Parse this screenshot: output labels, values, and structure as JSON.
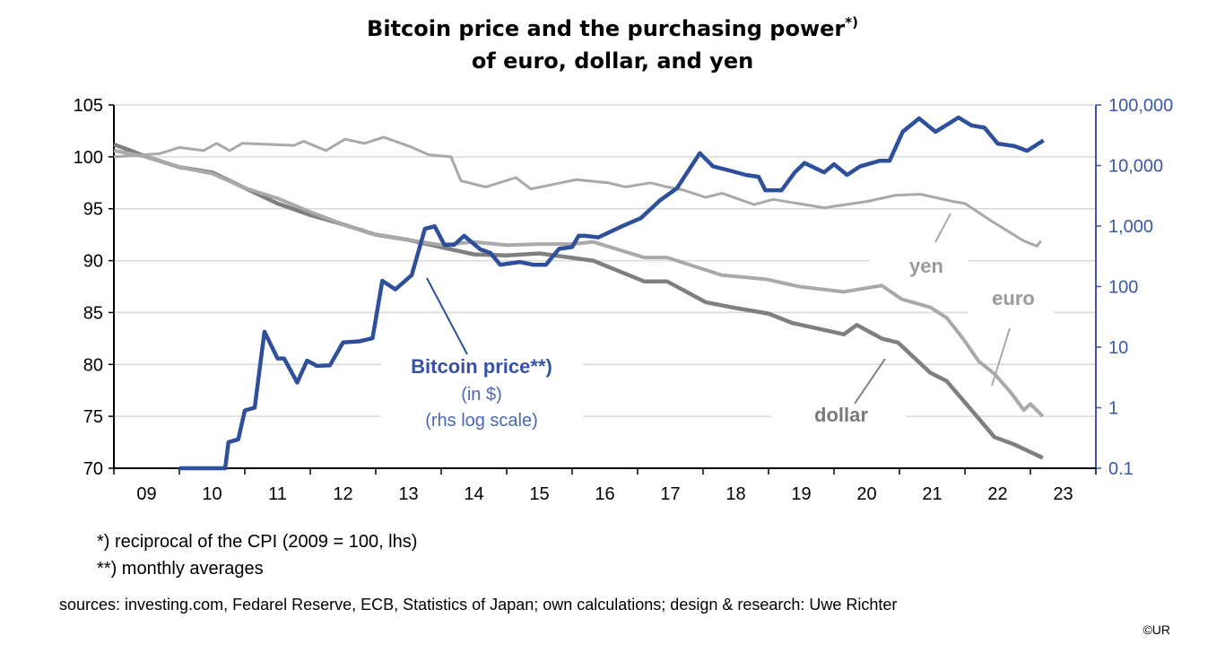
{
  "title": {
    "line1": "Bitcoin price and the purchasing power",
    "line1_sup": "*)",
    "line2": "of euro, dollar, and yen"
  },
  "colors": {
    "bitcoin": "#2e4f9a",
    "dollar": "#7f7f7f",
    "euro": "#a9a9a9",
    "yen": "#a9a9a9",
    "grid": "#d9d9d9",
    "right_axis": "#3b57a6"
  },
  "annotations": {
    "bitcoin": "Bitcoin price**)",
    "bitcoin_unit": "(in $)",
    "bitcoin_scale": "(rhs log scale)",
    "yen": "yen",
    "euro": "euro",
    "dollar": "dollar"
  },
  "footnotes": {
    "note1": "*) reciprocal of the CPI (2009 = 100, lhs)",
    "note2": "**) monthly averages",
    "sources": "sources: investing.com, Fedarel Reserve, ECB,  Statistics of Japan; own calculations; design & research: Uwe Richter",
    "copyright": "©UR"
  },
  "chart_data": {
    "type": "line",
    "title": "Bitcoin price and the purchasing power*) of euro, dollar, and yen",
    "x_tick_labels": [
      "09",
      "10",
      "11",
      "12",
      "13",
      "14",
      "15",
      "16",
      "17",
      "18",
      "19",
      "20",
      "21",
      "22",
      "23"
    ],
    "xlim": [
      2009,
      2024
    ],
    "left_axis": {
      "ylim": [
        70,
        105
      ],
      "ticks": [
        "70",
        "75",
        "80",
        "85",
        "90",
        "95",
        "100",
        "105"
      ]
    },
    "right_axis": {
      "scale": "log",
      "ylim": [
        0.1,
        100000
      ],
      "ticks": [
        "0.1",
        "1",
        "10",
        "100",
        "1,000",
        "10,000",
        "100,000"
      ]
    },
    "grid": true,
    "series": [
      {
        "name": "dollar",
        "axis": "left",
        "points": [
          [
            2009.0,
            101.2
          ],
          [
            2009.3,
            100.5
          ],
          [
            2009.5,
            100
          ],
          [
            2010.0,
            99
          ],
          [
            2010.5,
            98.5
          ],
          [
            2011.0,
            97
          ],
          [
            2011.5,
            95.5
          ],
          [
            2012.0,
            94.4
          ],
          [
            2012.5,
            93.5
          ],
          [
            2013.0,
            92.5
          ],
          [
            2013.5,
            92
          ],
          [
            2014.0,
            91.3
          ],
          [
            2014.5,
            90.6
          ],
          [
            2015.0,
            90.5
          ],
          [
            2015.5,
            90.7
          ],
          [
            2016.32,
            90.0
          ],
          [
            2017.1,
            88.0
          ],
          [
            2017.45,
            88.0
          ],
          [
            2018.04,
            86.0
          ],
          [
            2018.44,
            85.5
          ],
          [
            2019.0,
            84.9
          ],
          [
            2019.36,
            84.0
          ],
          [
            2020.15,
            82.9
          ],
          [
            2020.35,
            83.8
          ],
          [
            2020.73,
            82.5
          ],
          [
            2020.98,
            82.1
          ],
          [
            2021.47,
            79.2
          ],
          [
            2021.72,
            78.4
          ],
          [
            2022.21,
            74.8
          ],
          [
            2022.45,
            73.0
          ],
          [
            2022.75,
            72.3
          ],
          [
            2023.19,
            71.0
          ]
        ]
      },
      {
        "name": "euro",
        "axis": "left",
        "points": [
          [
            2009.0,
            100.6
          ],
          [
            2009.5,
            100
          ],
          [
            2010.0,
            99
          ],
          [
            2010.5,
            98.4
          ],
          [
            2011.0,
            97
          ],
          [
            2011.5,
            96
          ],
          [
            2012.0,
            94.7
          ],
          [
            2012.5,
            93.5
          ],
          [
            2013.0,
            92.5
          ],
          [
            2013.5,
            92
          ],
          [
            2014.0,
            91.5
          ],
          [
            2014.5,
            91.8
          ],
          [
            2015.0,
            91.5
          ],
          [
            2015.5,
            91.6
          ],
          [
            2016.0,
            91.6
          ],
          [
            2016.32,
            91.8
          ],
          [
            2017.1,
            90.3
          ],
          [
            2017.45,
            90.3
          ],
          [
            2018.29,
            88.6
          ],
          [
            2018.97,
            88.2
          ],
          [
            2019.47,
            87.5
          ],
          [
            2020.15,
            87.0
          ],
          [
            2020.73,
            87.6
          ],
          [
            2021.03,
            86.3
          ],
          [
            2021.47,
            85.5
          ],
          [
            2021.72,
            84.5
          ],
          [
            2021.97,
            82.5
          ],
          [
            2022.21,
            80.3
          ],
          [
            2022.45,
            79.1
          ],
          [
            2022.7,
            77.3
          ],
          [
            2022.9,
            75.6
          ],
          [
            2023.0,
            76.2
          ],
          [
            2023.19,
            75.0
          ]
        ]
      },
      {
        "name": "yen",
        "axis": "left",
        "points": [
          [
            2009.0,
            100.0
          ],
          [
            2009.69,
            100.3
          ],
          [
            2010.0,
            100.9
          ],
          [
            2010.37,
            100.6
          ],
          [
            2010.57,
            101.3
          ],
          [
            2010.77,
            100.6
          ],
          [
            2010.96,
            101.3
          ],
          [
            2011.75,
            101.1
          ],
          [
            2011.9,
            101.5
          ],
          [
            2012.24,
            100.6
          ],
          [
            2012.53,
            101.7
          ],
          [
            2012.83,
            101.3
          ],
          [
            2013.12,
            101.9
          ],
          [
            2013.52,
            101.0
          ],
          [
            2013.81,
            100.2
          ],
          [
            2014.15,
            100.0
          ],
          [
            2014.3,
            97.7
          ],
          [
            2014.68,
            97.1
          ],
          [
            2015.14,
            98.0
          ],
          [
            2015.37,
            96.9
          ],
          [
            2016.06,
            97.8
          ],
          [
            2016.55,
            97.5
          ],
          [
            2016.82,
            97.1
          ],
          [
            2017.2,
            97.5
          ],
          [
            2017.45,
            97.1
          ],
          [
            2017.7,
            96.8
          ],
          [
            2018.04,
            96.1
          ],
          [
            2018.29,
            96.5
          ],
          [
            2018.78,
            95.4
          ],
          [
            2019.07,
            95.9
          ],
          [
            2019.85,
            95.1
          ],
          [
            2020.5,
            95.7
          ],
          [
            2020.94,
            96.3
          ],
          [
            2021.32,
            96.4
          ],
          [
            2021.82,
            95.7
          ],
          [
            2022.0,
            95.5
          ],
          [
            2022.41,
            93.8
          ],
          [
            2022.9,
            91.9
          ],
          [
            2023.1,
            91.4
          ],
          [
            2023.16,
            91.9
          ]
        ]
      },
      {
        "name": "Bitcoin price**)",
        "axis": "right",
        "points": [
          [
            2010.0,
            0.1
          ],
          [
            2010.7,
            0.1
          ],
          [
            2010.75,
            0.27
          ],
          [
            2010.9,
            0.3
          ],
          [
            2011.0,
            0.9
          ],
          [
            2011.15,
            1.0
          ],
          [
            2011.3,
            18
          ],
          [
            2011.5,
            6.5
          ],
          [
            2011.6,
            6.5
          ],
          [
            2011.8,
            2.6
          ],
          [
            2011.95,
            6
          ],
          [
            2012.1,
            4.9
          ],
          [
            2012.3,
            5
          ],
          [
            2012.5,
            12
          ],
          [
            2012.75,
            12.5
          ],
          [
            2012.95,
            14
          ],
          [
            2013.1,
            125
          ],
          [
            2013.3,
            90
          ],
          [
            2013.55,
            155
          ],
          [
            2013.75,
            900
          ],
          [
            2013.9,
            990
          ],
          [
            2014.05,
            490
          ],
          [
            2014.2,
            490
          ],
          [
            2014.35,
            690
          ],
          [
            2014.6,
            410
          ],
          [
            2014.75,
            360
          ],
          [
            2014.9,
            230
          ],
          [
            2015.2,
            255
          ],
          [
            2015.4,
            230
          ],
          [
            2015.6,
            230
          ],
          [
            2015.8,
            420
          ],
          [
            2016.0,
            450
          ],
          [
            2016.1,
            690
          ],
          [
            2016.2,
            690
          ],
          [
            2016.4,
            650
          ],
          [
            2016.75,
            980
          ],
          [
            2017.05,
            1350
          ],
          [
            2017.35,
            2700
          ],
          [
            2017.6,
            4200
          ],
          [
            2017.95,
            16000
          ],
          [
            2018.15,
            9700
          ],
          [
            2018.4,
            8300
          ],
          [
            2018.65,
            7000
          ],
          [
            2018.85,
            6500
          ],
          [
            2018.95,
            3900
          ],
          [
            2019.2,
            3900
          ],
          [
            2019.4,
            7700
          ],
          [
            2019.55,
            11000
          ],
          [
            2019.85,
            7700
          ],
          [
            2020.0,
            10500
          ],
          [
            2020.2,
            7000
          ],
          [
            2020.4,
            9700
          ],
          [
            2020.7,
            12000
          ],
          [
            2020.85,
            12000
          ],
          [
            2021.05,
            36000
          ],
          [
            2021.3,
            60000
          ],
          [
            2021.55,
            36000
          ],
          [
            2021.75,
            49000
          ],
          [
            2021.9,
            62000
          ],
          [
            2022.1,
            46000
          ],
          [
            2022.3,
            42000
          ],
          [
            2022.5,
            23000
          ],
          [
            2022.75,
            21000
          ],
          [
            2022.95,
            17500
          ],
          [
            2023.2,
            26000
          ]
        ]
      }
    ]
  }
}
